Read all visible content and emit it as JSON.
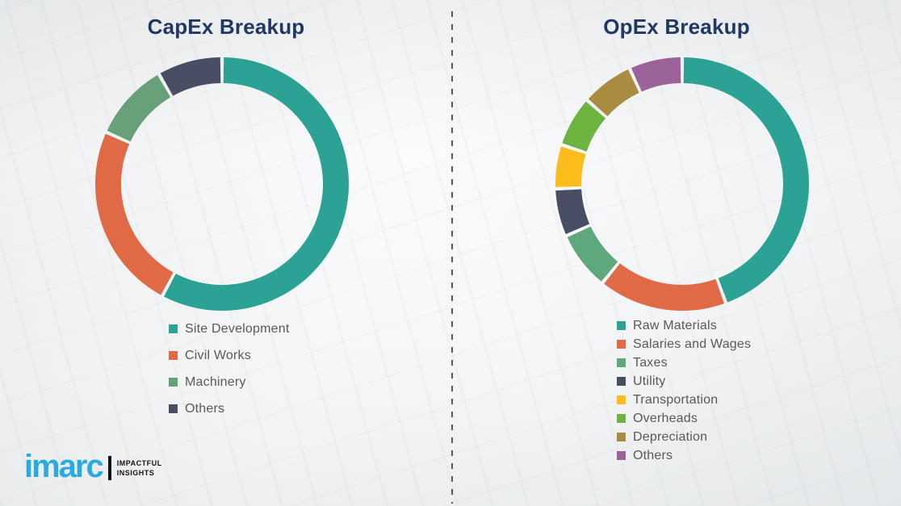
{
  "theme": {
    "title_color": "#1F3864",
    "legend_text_color": "#595959",
    "divider_color": "#54585C",
    "background_base": "#F5F6F7"
  },
  "divider": {
    "style": "dashed-vertical-line",
    "color": "#54585C"
  },
  "chart_data": [
    {
      "type": "pie",
      "donut": true,
      "title": "CapEx Breakup",
      "labels": [
        "Site Development",
        "Civil Works",
        "Machinery",
        "Others"
      ],
      "values": [
        57.8,
        23.9,
        10.0,
        8.3
      ],
      "colors": [
        "#2BA293",
        "#E06A45",
        "#68A179",
        "#4A4E64"
      ],
      "start_angle_deg": 0,
      "direction": "clockwise",
      "legend_position": "below-left",
      "data_labels_shown": false
    },
    {
      "type": "pie",
      "donut": true,
      "title": "OpEx Breakup",
      "labels": [
        "Raw Materials",
        "Salaries and Wages",
        "Taxes",
        "Utility",
        "Transportation",
        "Overheads",
        "Depreciation",
        "Others"
      ],
      "values": [
        44.4,
        16.4,
        7.5,
        6.1,
        5.6,
        6.5,
        6.7,
        6.8
      ],
      "colors": [
        "#2BA293",
        "#E06A45",
        "#5FA87D",
        "#4A4E64",
        "#FBBC1C",
        "#6CB33F",
        "#A98C3F",
        "#9B6399"
      ],
      "start_angle_deg": 0,
      "direction": "clockwise",
      "legend_position": "below-left",
      "data_labels_shown": false
    }
  ],
  "logo": {
    "brand": "imarc",
    "tagline_line1": "IMPACTFUL",
    "tagline_line2": "INSIGHTS",
    "brand_color": "#29ABE2",
    "tagline_color": "#141414"
  }
}
